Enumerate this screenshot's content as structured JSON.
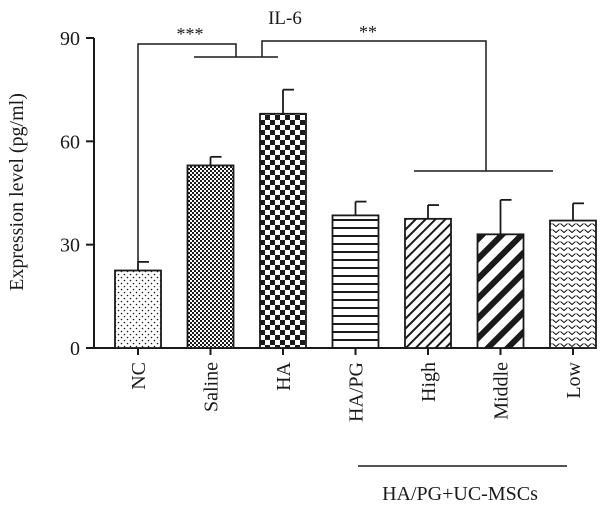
{
  "chart_data": {
    "type": "bar",
    "title": "IL-6",
    "ylabel": "Expression level (pg/ml)",
    "xlabel": "",
    "ylim": [
      0,
      90
    ],
    "yticks": [
      0,
      30,
      60,
      90
    ],
    "categories": [
      "NC",
      "Saline",
      "HA",
      "HA/PG",
      "High",
      "Middle",
      "Low"
    ],
    "values": [
      22.5,
      53,
      68,
      38.5,
      37.5,
      33,
      37
    ],
    "errors": [
      2.5,
      2.5,
      7,
      4,
      4,
      10,
      5
    ],
    "patterns": [
      "dots",
      "fine-check",
      "check",
      "horizontal-lines",
      "diagonal-lines",
      "thick-diagonal-lines",
      "chevrons"
    ],
    "group_label": "HA/PG+UC-MSCs",
    "significance": [
      "***",
      "**"
    ],
    "colors": {
      "ink": "#1a1a1a",
      "fill": "#ffffff"
    }
  }
}
